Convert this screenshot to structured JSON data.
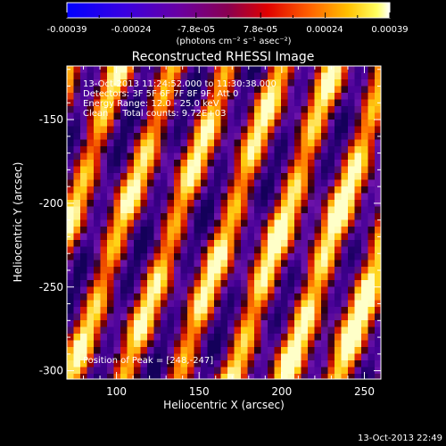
{
  "chart_data": {
    "type": "heatmap",
    "title": "Reconstructed RHESSI Image",
    "xlabel": "Heliocentric X (arcsec)",
    "ylabel": "Heliocentric Y (arcsec)",
    "xlim": [
      70,
      260
    ],
    "ylim": [
      -305,
      -118
    ],
    "xticks": [
      100,
      150,
      200,
      250
    ],
    "yticks": [
      -150,
      -200,
      -250,
      -300
    ],
    "grid": false,
    "colorbar": {
      "ticks": [
        "-0.00039",
        "-0.00024",
        "-7.8e-05",
        "7.8e-05",
        "0.00024",
        "0.00039"
      ],
      "unit_label": "(photons cm⁻² s⁻¹ asec⁻²)",
      "range": [
        -0.00039,
        0.00039
      ]
    },
    "annotations": [
      "13-Oct-2013 11:24:52.000 to 11:30:38.000",
      "Detectors: 3F 5F 6F 7F 8F 9F, Att 0",
      "Energy Range: 12.0 - 25.0 keV",
      "Clean     Total counts: 9.72E+03",
      "Position of Peak = [248,-247]"
    ],
    "peak": [
      248,
      -247
    ],
    "colormap": "rainbow: blue-violet-red-orange-yellow-white"
  },
  "footer": {
    "timestamp": "13-Oct-2013 22:49"
  }
}
